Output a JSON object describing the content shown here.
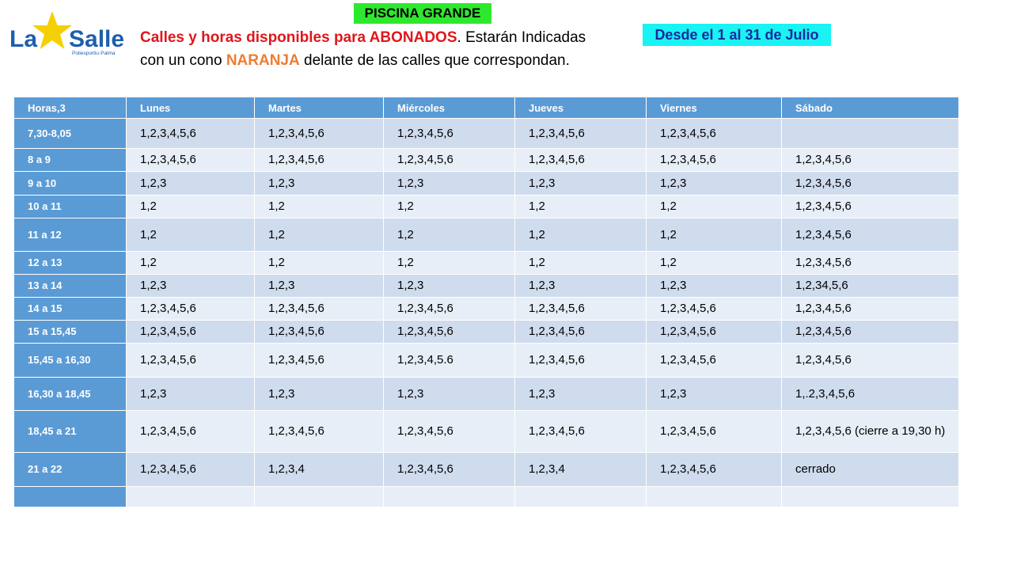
{
  "logo": {
    "brand": "La Salle",
    "subtitle": "Poliesportiu·Palma",
    "star_color": "#f5d000",
    "text_color": "#1d5fae"
  },
  "header": {
    "title": "PISCINA GRANDE",
    "line1_highlight": "Calles y horas disponibles para ABONADOS",
    "line1_rest": ". Estarán Indicadas",
    "line2_pre": "con un cono ",
    "line2_highlight": "NARANJA",
    "line2_post": " delante de las calles que correspondan.",
    "dates": "Desde el 1 al 31 de Julio"
  },
  "table": {
    "headers": [
      "Horas,3",
      "Lunes",
      "Martes",
      "Miércoles",
      "Jueves",
      "Viernes",
      "Sábado"
    ],
    "rows": [
      [
        "7,30-8,05",
        "1,2,3,4,5,6",
        "1,2,3,4,5,6",
        "1,2,3,4,5,6",
        "1,2,3,4,5,6",
        "1,2,3,4,5,6",
        ""
      ],
      [
        "8 a 9",
        "1,2,3,4,5,6",
        "1,2,3,4,5,6",
        "1,2,3,4,5,6",
        "1,2,3,4,5,6",
        "1,2,3,4,5,6",
        "1,2,3,4,5,6"
      ],
      [
        "9 a 10",
        "1,2,3",
        "1,2,3",
        "1,2,3",
        "1,2,3",
        "1,2,3",
        "1,2,3,4,5,6"
      ],
      [
        "10 a 11",
        "1,2",
        "1,2",
        "1,2",
        "1,2",
        "1,2",
        "1,2,3,4,5,6"
      ],
      [
        "11 a 12",
        "1,2",
        "1,2",
        "1,2",
        "1,2",
        "1,2",
        "1,2,3,4,5,6"
      ],
      [
        "12 a 13",
        "1,2",
        "1,2",
        "1,2",
        "1,2",
        "1,2",
        "1,2,3,4,5,6"
      ],
      [
        "13 a 14",
        "1,2,3",
        "1,2,3",
        "1,2,3",
        "1,2,3",
        "1,2,3",
        "1,2,34,5,6"
      ],
      [
        "14 a 15",
        "1,2,3,4,5,6",
        "1,2,3,4,5,6",
        "1,2,3,4,5,6",
        "1,2,3,4,5,6",
        "1,2,3,4,5,6",
        "1,2,3,4,5,6"
      ],
      [
        "15 a 15,45",
        "1,2,3,4,5,6",
        "1,2,3,4,5,6",
        "1,2,3,4,5,6",
        "1,2,3,4,5,6",
        "1,2,3,4,5,6",
        "1,2,3,4,5,6"
      ],
      [
        "15,45 a 16,30",
        "1,2,3,4,5,6",
        "1,2,3,4,5,6",
        "1,2,3,4,5.6",
        "1,2,3,4,5,6",
        "1,2,3,4,5,6",
        "1,2,3,4,5,6"
      ],
      [
        "16,30 a 18,45",
        "1,2,3",
        "1,2,3",
        "1,2,3",
        "1,2,3",
        "1,2,3",
        "1,.2,3,4,5,6"
      ],
      [
        "18,45 a  21",
        "1,2,3,4,5,6",
        "1,2,3,4,5,6",
        "1,2,3,4,5,6",
        "1,2,3,4,5,6",
        " 1,2,3,4,5,6",
        "1,2,3,4,5,6 (cierre a 19,30 h)"
      ],
      [
        "21 a 22",
        "1,2,3,4,5,6",
        "1,2,3,4",
        "1,2,3,4,5,6",
        "1,2,3,4",
        "1,2,3,4,5,6",
        "cerrado"
      ],
      [
        "",
        "",
        "",
        "",
        "",
        "",
        ""
      ]
    ]
  }
}
